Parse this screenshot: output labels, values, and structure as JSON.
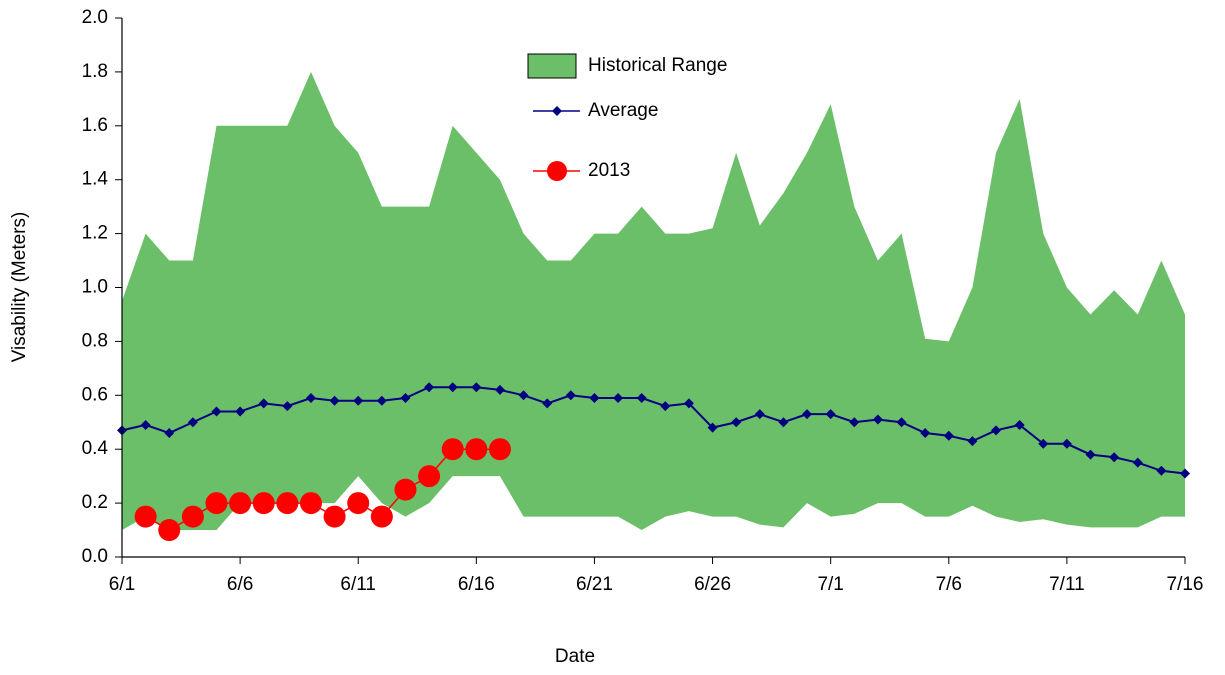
{
  "chart_data": {
    "type": "line",
    "x_label": "Date",
    "y_label": "Visability (Meters)",
    "categories": [
      "6/1",
      null,
      null,
      null,
      null,
      "6/6",
      null,
      null,
      null,
      null,
      "6/11",
      null,
      null,
      null,
      null,
      "6/16",
      null,
      null,
      null,
      null,
      "6/21",
      null,
      null,
      null,
      null,
      "6/26",
      null,
      null,
      null,
      null,
      "7/1",
      null,
      null,
      null,
      null,
      "7/6",
      null,
      null,
      null,
      null,
      "7/11",
      null,
      null,
      null,
      null,
      "7/16"
    ],
    "ylim": [
      0,
      2
    ],
    "yticks": [
      {
        "value": 0,
        "label": "0.0"
      },
      0.2,
      0.4,
      0.6,
      0.8,
      {
        "value": 1,
        "label": "1.0"
      },
      1.2,
      1.4,
      1.6,
      1.8,
      {
        "value": 2,
        "label": "2.0"
      }
    ],
    "series": [
      {
        "name": "Historical Range",
        "type": "range",
        "color": "#6cbf69",
        "values": [
          0.95,
          1.2,
          1.1,
          1.1,
          1.6,
          1.6,
          1.6,
          1.6,
          1.8,
          1.6,
          1.5,
          1.3,
          1.3,
          1.3,
          1.6,
          1.5,
          1.4,
          1.2,
          1.1,
          1.1,
          1.2,
          1.2,
          1.3,
          1.2,
          1.2,
          1.22,
          1.5,
          1.23,
          1.35,
          1.5,
          1.68,
          1.3,
          1.1,
          1.2,
          0.81,
          0.8,
          1.0,
          1.5,
          1.7,
          1.2,
          1.0,
          0.9,
          0.99,
          0.9,
          1.1,
          0.9
        ],
        "low": [
          0.1,
          0.15,
          0.1,
          0.1,
          0.1,
          0.2,
          0.2,
          0.2,
          0.2,
          0.2,
          0.3,
          0.2,
          0.15,
          0.2,
          0.3,
          0.3,
          0.3,
          0.15,
          0.15,
          0.15,
          0.15,
          0.15,
          0.1,
          0.15,
          0.17,
          0.15,
          0.15,
          0.12,
          0.11,
          0.2,
          0.15,
          0.16,
          0.2,
          0.2,
          0.15,
          0.15,
          0.19,
          0.15,
          0.13,
          0.14,
          0.12,
          0.11,
          0.11,
          0.11,
          0.15,
          0.15
        ]
      },
      {
        "name": "Average",
        "type": "line",
        "marker": "diamond",
        "color": "#000080",
        "values": [
          0.47,
          0.49,
          0.46,
          0.5,
          0.54,
          0.54,
          0.57,
          0.56,
          0.59,
          0.58,
          0.58,
          0.58,
          0.59,
          0.63,
          0.63,
          0.63,
          0.62,
          0.6,
          0.57,
          0.6,
          0.59,
          0.59,
          0.59,
          0.56,
          0.57,
          0.48,
          0.5,
          0.53,
          0.5,
          0.53,
          0.53,
          0.5,
          0.51,
          0.5,
          0.46,
          0.45,
          0.43,
          0.47,
          0.49,
          0.42,
          0.42,
          0.38,
          0.37,
          0.35,
          0.32,
          0.31
        ]
      },
      {
        "name": "2013",
        "type": "line",
        "marker": "circle",
        "color": "#ff0000",
        "values": [
          null,
          0.15,
          0.1,
          0.15,
          0.2,
          0.2,
          0.2,
          0.2,
          0.2,
          0.15,
          0.2,
          0.15,
          0.25,
          0.3,
          0.4,
          0.4,
          0.4,
          null,
          null,
          null,
          null,
          null,
          null,
          null,
          null,
          null,
          null,
          null,
          null,
          null,
          null,
          null,
          null,
          null,
          null,
          null,
          null,
          null,
          null,
          null,
          null,
          null,
          null,
          null,
          null,
          null
        ]
      }
    ]
  }
}
